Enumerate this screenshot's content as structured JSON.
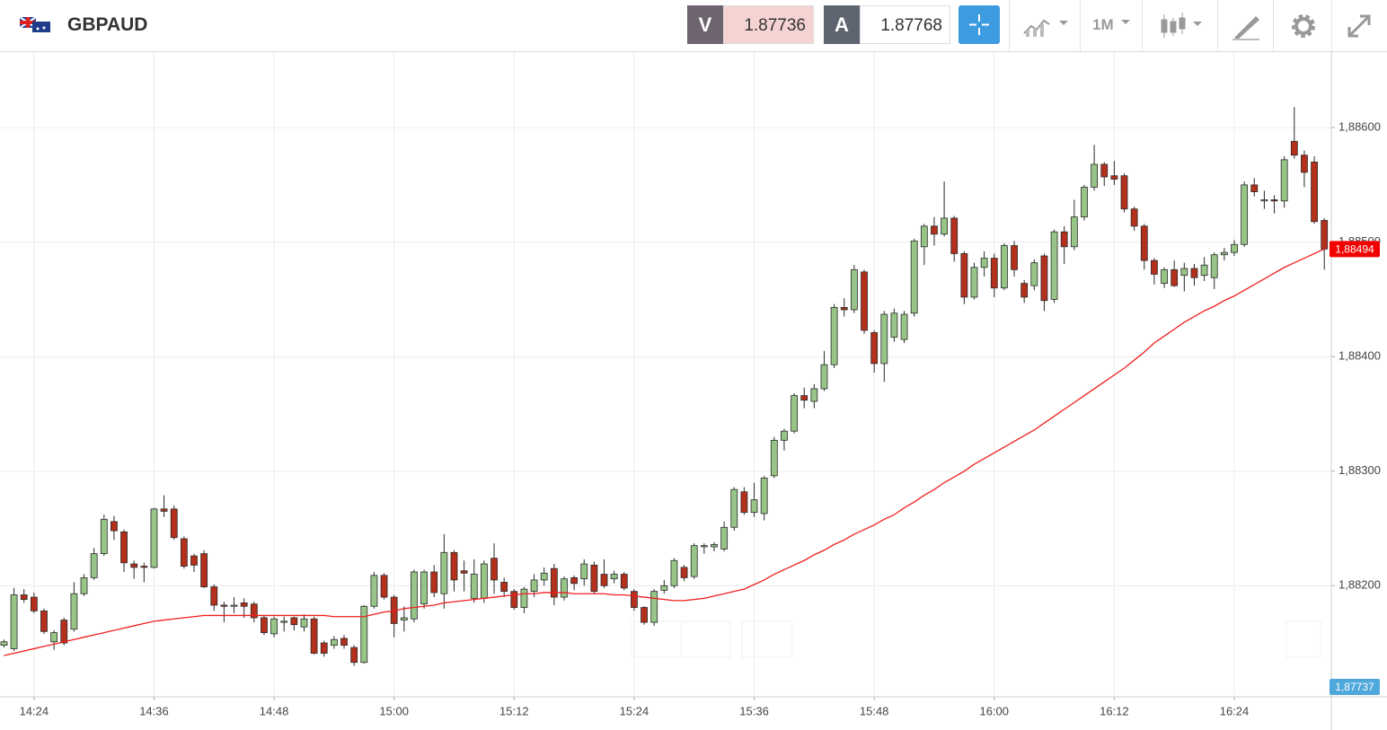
{
  "header": {
    "symbol": "GBPAUD",
    "sell_label": "V",
    "sell_price": "1.87736",
    "buy_label": "A",
    "buy_price": "1.87768",
    "timeframe": "1M"
  },
  "chart_data": {
    "type": "candlestick",
    "x": [
      861,
      862,
      863,
      864,
      865,
      866,
      867,
      868,
      869,
      870,
      871,
      872,
      873,
      874,
      875,
      876,
      877,
      878,
      879,
      880,
      881,
      882,
      883,
      884,
      885,
      886,
      887,
      888,
      889,
      890,
      891,
      892,
      893,
      894,
      895,
      896,
      897,
      898,
      899,
      900,
      901,
      902,
      903,
      904,
      905,
      906,
      907,
      908,
      909,
      910,
      911,
      912,
      913,
      914,
      915,
      916,
      917,
      918,
      919,
      920,
      921,
      922,
      923,
      924,
      925,
      926,
      927,
      928,
      929,
      930,
      931,
      932,
      933,
      934,
      935,
      936,
      937,
      938,
      939,
      940,
      941,
      942,
      943,
      944,
      945,
      946,
      947,
      948,
      949,
      950,
      951,
      952,
      953,
      954,
      955,
      956,
      957,
      958,
      959,
      960,
      961,
      962,
      963,
      964,
      965,
      966,
      967,
      968,
      969,
      970,
      971,
      972,
      973,
      974,
      975,
      976,
      977,
      978,
      979,
      980,
      981,
      982,
      983,
      984,
      985,
      986,
      987,
      988,
      989,
      990,
      991,
      992,
      993
    ],
    "open": [
      1.88148,
      1.88145,
      1.88192,
      1.8819,
      1.88178,
      1.88151,
      1.8817,
      1.88162,
      1.88193,
      1.88207,
      1.88228,
      1.88256,
      1.88247,
      1.88219,
      1.88217,
      1.88216,
      1.88267,
      1.88267,
      1.88241,
      1.88226,
      1.88228,
      1.88199,
      1.88183,
      1.88182,
      1.88185,
      1.88184,
      1.88172,
      1.88158,
      1.88168,
      1.88172,
      1.88164,
      1.88171,
      1.8815,
      1.88148,
      1.88154,
      1.88146,
      1.88133,
      1.88182,
      1.88209,
      1.8819,
      1.8817,
      1.88171,
      1.88184,
      1.88212,
      1.88193,
      1.88229,
      1.88213,
      1.88189,
      1.88189,
      1.88224,
      1.88203,
      1.88195,
      1.88181,
      1.88195,
      1.88205,
      1.88215,
      1.8819,
      1.88207,
      1.88206,
      1.88218,
      1.8821,
      1.88206,
      1.8821,
      1.88195,
      1.88181,
      1.88168,
      1.88196,
      1.882,
      1.88216,
      1.88208,
      1.88234,
      1.88234,
      1.88232,
      1.88251,
      1.88282,
      1.88264,
      1.88263,
      1.88296,
      1.88327,
      1.88335,
      1.88366,
      1.88361,
      1.88372,
      1.88393,
      1.88443,
      1.88441,
      1.88474,
      1.88421,
      1.88394,
      1.88417,
      1.88415,
      1.88438,
      1.88496,
      1.88514,
      1.88507,
      1.88521,
      1.8849,
      1.88452,
      1.88478,
      1.88486,
      1.8846,
      1.88497,
      1.88464,
      1.88462,
      1.88488,
      1.8845,
      1.88509,
      1.88496,
      1.88522,
      1.88548,
      1.88568,
      1.88558,
      1.88558,
      1.88529,
      1.88514,
      1.88484,
      1.88464,
      1.88476,
      1.88471,
      1.88477,
      1.88471,
      1.88469,
      1.88489,
      1.88491,
      1.88498,
      1.8855,
      1.88536,
      1.88537,
      1.88536,
      1.88588,
      1.88576,
      1.8857,
      1.88519
    ],
    "high": [
      1.88153,
      1.88198,
      1.88197,
      1.88194,
      1.8818,
      1.88161,
      1.88172,
      1.88203,
      1.8821,
      1.88233,
      1.88262,
      1.88261,
      1.88249,
      1.88222,
      1.8822,
      1.88268,
      1.88279,
      1.8827,
      1.88243,
      1.88228,
      1.88231,
      1.88201,
      1.88186,
      1.8819,
      1.88189,
      1.88186,
      1.88174,
      1.88173,
      1.88173,
      1.88173,
      1.88175,
      1.88173,
      1.88152,
      1.88156,
      1.88157,
      1.88148,
      1.88183,
      1.88212,
      1.88211,
      1.88192,
      1.88182,
      1.88214,
      1.88214,
      1.88218,
      1.88245,
      1.88231,
      1.88222,
      1.88223,
      1.88222,
      1.88237,
      1.88207,
      1.88197,
      1.88199,
      1.8821,
      1.88216,
      1.88219,
      1.88208,
      1.88209,
      1.88223,
      1.88221,
      1.88223,
      1.88213,
      1.88212,
      1.88197,
      1.88182,
      1.88197,
      1.88205,
      1.88224,
      1.88218,
      1.88237,
      1.88237,
      1.88238,
      1.88256,
      1.88286,
      1.88286,
      1.8829,
      1.88296,
      1.8833,
      1.88337,
      1.88368,
      1.88373,
      1.88376,
      1.88405,
      1.88446,
      1.88451,
      1.8848,
      1.88476,
      1.88423,
      1.8844,
      1.88442,
      1.8844,
      1.88503,
      1.88516,
      1.88522,
      1.88553,
      1.88523,
      1.88492,
      1.88482,
      1.88492,
      1.8849,
      1.88499,
      1.88501,
      1.88467,
      1.88485,
      1.8849,
      1.88511,
      1.88514,
      1.88537,
      1.8855,
      1.88585,
      1.8857,
      1.88571,
      1.8856,
      1.88531,
      1.88516,
      1.88486,
      1.88478,
      1.88484,
      1.88482,
      1.88481,
      1.88487,
      1.88491,
      1.88495,
      1.88502,
      1.88553,
      1.88556,
      1.88545,
      1.88541,
      1.88575,
      1.88618,
      1.8858,
      1.88575,
      1.88521
    ],
    "low": [
      1.88146,
      1.88143,
      1.88185,
      1.88176,
      1.88158,
      1.88144,
      1.88148,
      1.8816,
      1.88191,
      1.88205,
      1.88226,
      1.8824,
      1.88212,
      1.88206,
      1.88203,
      1.88215,
      1.8826,
      1.8824,
      1.88215,
      1.88212,
      1.88198,
      1.88178,
      1.88168,
      1.88176,
      1.88172,
      1.88168,
      1.88157,
      1.88155,
      1.8816,
      1.88161,
      1.8816,
      1.8814,
      1.88138,
      1.88145,
      1.88145,
      1.8813,
      1.88132,
      1.8818,
      1.88188,
      1.88155,
      1.8816,
      1.88168,
      1.8818,
      1.8819,
      1.8818,
      1.88195,
      1.88195,
      1.88185,
      1.88185,
      1.88193,
      1.8819,
      1.88179,
      1.88176,
      1.8819,
      1.882,
      1.88183,
      1.88187,
      1.88196,
      1.882,
      1.88193,
      1.88198,
      1.88202,
      1.88196,
      1.88178,
      1.88166,
      1.88165,
      1.88193,
      1.88198,
      1.88204,
      1.88206,
      1.88228,
      1.8823,
      1.8823,
      1.88248,
      1.88262,
      1.8826,
      1.88257,
      1.88294,
      1.88318,
      1.88333,
      1.88355,
      1.88355,
      1.8837,
      1.8839,
      1.88435,
      1.88438,
      1.8842,
      1.88386,
      1.88378,
      1.88413,
      1.88412,
      1.88435,
      1.8848,
      1.88497,
      1.88505,
      1.88483,
      1.88446,
      1.8845,
      1.8847,
      1.88452,
      1.88458,
      1.8847,
      1.88447,
      1.88458,
      1.8844,
      1.88447,
      1.88481,
      1.88493,
      1.88519,
      1.88545,
      1.88549,
      1.8855,
      1.88526,
      1.8851,
      1.88476,
      1.88463,
      1.8846,
      1.88461,
      1.88457,
      1.88462,
      1.88466,
      1.88459,
      1.88484,
      1.88488,
      1.88496,
      1.8854,
      1.88529,
      1.88525,
      1.8853,
      1.88573,
      1.88548,
      1.88516,
      1.88476
    ],
    "close": [
      1.88151,
      1.88192,
      1.88188,
      1.88178,
      1.8816,
      1.88159,
      1.8815,
      1.88193,
      1.88207,
      1.88228,
      1.88258,
      1.88248,
      1.8822,
      1.88216,
      1.88216,
      1.88267,
      1.88265,
      1.88242,
      1.88217,
      1.88218,
      1.88199,
      1.88183,
      1.88182,
      1.88183,
      1.88182,
      1.88172,
      1.88159,
      1.88171,
      1.88169,
      1.88166,
      1.88171,
      1.88141,
      1.88141,
      1.88153,
      1.88148,
      1.88133,
      1.88182,
      1.88209,
      1.8819,
      1.88167,
      1.88172,
      1.88212,
      1.88212,
      1.88194,
      1.88229,
      1.88205,
      1.88211,
      1.8821,
      1.88219,
      1.88205,
      1.88195,
      1.88181,
      1.88197,
      1.88205,
      1.88211,
      1.8819,
      1.88206,
      1.88202,
      1.88219,
      1.88195,
      1.882,
      1.8821,
      1.88198,
      1.88181,
      1.88168,
      1.88195,
      1.882,
      1.88222,
      1.88207,
      1.88235,
      1.88235,
      1.88236,
      1.88251,
      1.88284,
      1.88264,
      1.88275,
      1.88294,
      1.88327,
      1.88335,
      1.88366,
      1.88362,
      1.88372,
      1.88393,
      1.88443,
      1.88441,
      1.88476,
      1.88423,
      1.88394,
      1.88437,
      1.88438,
      1.88437,
      1.88501,
      1.88514,
      1.88507,
      1.88521,
      1.8849,
      1.88452,
      1.88478,
      1.88486,
      1.8846,
      1.88497,
      1.88476,
      1.88452,
      1.88482,
      1.88449,
      1.88509,
      1.88496,
      1.88522,
      1.88548,
      1.88568,
      1.88557,
      1.88555,
      1.88529,
      1.88514,
      1.88484,
      1.88472,
      1.88476,
      1.88462,
      1.88477,
      1.88469,
      1.8848,
      1.88489,
      1.88491,
      1.88498,
      1.8855,
      1.88544,
      1.88537,
      1.88536,
      1.88572,
      1.88576,
      1.88561,
      1.88518,
      1.88494
    ],
    "up_color": "#97c587",
    "down_color": "#b3301c",
    "outline_color": "#2a2a2a",
    "overlay_line": {
      "color": "#f01e1e",
      "values": [
        1.88139,
        1.88141,
        1.88143,
        1.88145,
        1.88147,
        1.88149,
        1.88151,
        1.88153,
        1.88155,
        1.88157,
        1.88159,
        1.88161,
        1.88163,
        1.88165,
        1.88167,
        1.88169,
        1.8817,
        1.88171,
        1.88172,
        1.88173,
        1.88174,
        1.88174,
        1.88174,
        1.88174,
        1.88174,
        1.88174,
        1.88174,
        1.88174,
        1.88174,
        1.88174,
        1.88174,
        1.88174,
        1.88174,
        1.88173,
        1.88173,
        1.88173,
        1.88173,
        1.88175,
        1.88177,
        1.88178,
        1.8818,
        1.88181,
        1.88182,
        1.88183,
        1.88185,
        1.88186,
        1.88187,
        1.88188,
        1.88189,
        1.8819,
        1.88191,
        1.88192,
        1.88193,
        1.88193,
        1.88194,
        1.88194,
        1.88194,
        1.88193,
        1.88193,
        1.88193,
        1.88193,
        1.88192,
        1.88192,
        1.88191,
        1.8819,
        1.88189,
        1.88188,
        1.88187,
        1.88187,
        1.88188,
        1.88189,
        1.88191,
        1.88193,
        1.88195,
        1.88197,
        1.88201,
        1.88205,
        1.8821,
        1.88214,
        1.88218,
        1.88222,
        1.88227,
        1.88231,
        1.88236,
        1.8824,
        1.88245,
        1.88249,
        1.88253,
        1.88258,
        1.88262,
        1.88268,
        1.88273,
        1.88279,
        1.88284,
        1.8829,
        1.88295,
        1.883,
        1.88306,
        1.88311,
        1.88316,
        1.88321,
        1.88326,
        1.88331,
        1.88336,
        1.88342,
        1.88348,
        1.88354,
        1.8836,
        1.88366,
        1.88372,
        1.88378,
        1.88384,
        1.8839,
        1.88397,
        1.88404,
        1.88412,
        1.88418,
        1.88424,
        1.8843,
        1.88435,
        1.8844,
        1.88444,
        1.88449,
        1.88453,
        1.88458,
        1.88463,
        1.88468,
        1.88473,
        1.88478,
        1.88482,
        1.88486,
        1.8849,
        1.88494
      ]
    },
    "xlim": [
      860.6,
      993.7
    ],
    "xticks": [
      {
        "value": 864,
        "label": "14:24"
      },
      {
        "value": 876,
        "label": "14:36"
      },
      {
        "value": 888,
        "label": "14:48"
      },
      {
        "value": 900,
        "label": "15:00"
      },
      {
        "value": 912,
        "label": "15:12"
      },
      {
        "value": 924,
        "label": "15:24"
      },
      {
        "value": 936,
        "label": "15:36"
      },
      {
        "value": 948,
        "label": "15:48"
      },
      {
        "value": 960,
        "label": "16:00"
      },
      {
        "value": 972,
        "label": "16:12"
      },
      {
        "value": 984,
        "label": "16:24"
      }
    ],
    "ylim": [
      1.88103,
      1.88666
    ],
    "yticks": [
      {
        "value": 1.882,
        "label": "1,88200"
      },
      {
        "value": 1.883,
        "label": "1,88300"
      },
      {
        "value": 1.884,
        "label": "1,88400"
      },
      {
        "value": 1.885,
        "label": "1,88500"
      },
      {
        "value": 1.886,
        "label": "1,88600"
      }
    ],
    "grid": true,
    "price_tags": [
      {
        "value": 1.88494,
        "label": "1,88494",
        "color": "#f20000"
      },
      {
        "value": 1.87737,
        "label": "1,87737",
        "color": "#4fa8dc"
      }
    ]
  }
}
